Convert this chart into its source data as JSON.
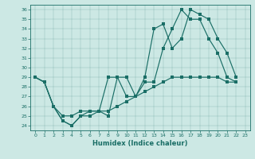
{
  "xlabel": "Humidex (Indice chaleur)",
  "bg_color": "#cce8e4",
  "line_color": "#1a6e66",
  "yticks": [
    24,
    25,
    26,
    27,
    28,
    29,
    30,
    31,
    32,
    33,
    34,
    35,
    36
  ],
  "xticks": [
    0,
    1,
    2,
    3,
    4,
    5,
    6,
    7,
    8,
    9,
    10,
    11,
    12,
    13,
    14,
    15,
    16,
    17,
    18,
    19,
    20,
    21,
    22,
    23
  ],
  "line1_x": [
    0,
    1,
    2,
    3,
    4,
    5,
    6,
    7,
    8,
    9,
    10,
    11,
    12,
    13,
    14,
    15,
    16,
    17,
    18,
    19,
    20,
    21,
    22
  ],
  "line1_y": [
    29,
    28.5,
    26,
    24.5,
    24,
    25,
    25,
    25.5,
    29,
    29,
    27,
    27,
    29,
    34,
    34.5,
    32,
    33,
    36,
    35.5,
    35,
    33,
    31.5,
    29
  ],
  "line2_x": [
    0,
    1,
    2,
    3,
    4,
    5,
    6,
    7,
    8,
    9,
    10,
    11,
    12,
    13,
    14,
    15,
    16,
    17,
    18,
    19,
    20,
    21,
    22
  ],
  "line2_y": [
    29,
    28.5,
    26,
    24.5,
    24,
    25,
    25.5,
    25.5,
    25,
    29,
    29,
    27,
    28.5,
    28.5,
    32,
    34,
    36,
    35,
    35,
    33,
    31.5,
    29,
    28.5
  ],
  "line3_x": [
    0,
    1,
    2,
    3,
    4,
    5,
    6,
    7,
    8,
    9,
    10,
    11,
    12,
    13,
    14,
    15,
    16,
    17,
    18,
    19,
    20,
    21,
    22
  ],
  "line3_y": [
    29,
    28.5,
    26,
    25,
    25,
    25.5,
    25.5,
    25.5,
    25.5,
    26,
    26.5,
    27,
    27.5,
    28,
    28.5,
    29,
    29,
    29,
    29,
    29,
    29,
    28.5,
    28.5
  ]
}
